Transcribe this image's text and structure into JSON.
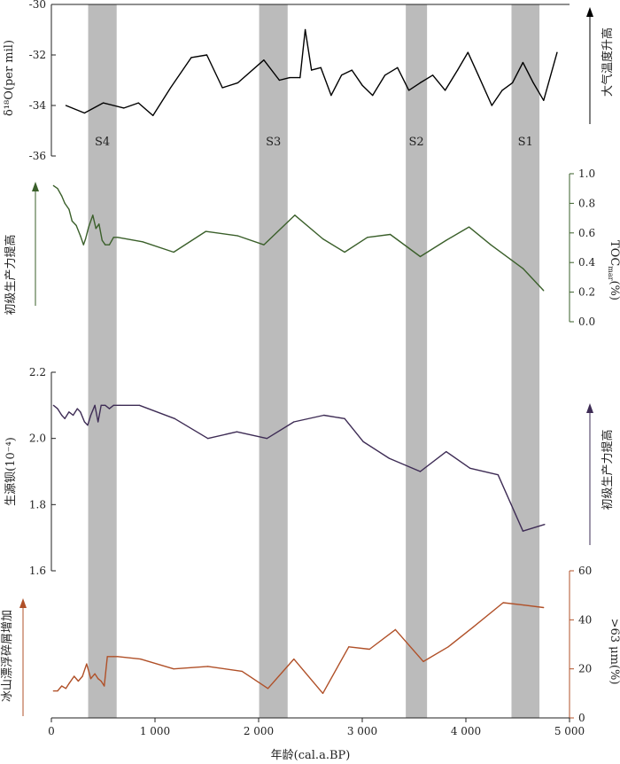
{
  "chart_data": [
    {
      "type": "line",
      "panel": "d18o",
      "ylabel": "δ¹⁸O(per mil)",
      "ylim": [
        -36,
        -30
      ],
      "yticks": [
        -30,
        -32,
        -34,
        -36
      ],
      "axis_side": "left",
      "color": "#000000",
      "arrow_label": "大气温度升高",
      "arrow_side": "right",
      "arrow_color": "#000000",
      "x": [
        140,
        320,
        500,
        700,
        840,
        980,
        1150,
        1350,
        1500,
        1650,
        1800,
        2050,
        2200,
        2300,
        2400,
        2450,
        2510,
        2600,
        2700,
        2800,
        2900,
        3000,
        3100,
        3220,
        3340,
        3450,
        3560,
        3680,
        3800,
        3920,
        4020,
        4120,
        4250,
        4350,
        4450,
        4550,
        4650,
        4750,
        4880
      ],
      "y": [
        -34.0,
        -34.3,
        -33.9,
        -34.1,
        -33.9,
        -34.4,
        -33.3,
        -32.1,
        -32.0,
        -33.3,
        -33.1,
        -32.2,
        -33.0,
        -32.9,
        -32.9,
        -31.0,
        -32.6,
        -32.5,
        -33.6,
        -32.8,
        -32.6,
        -33.2,
        -33.6,
        -32.8,
        -32.5,
        -33.4,
        -33.1,
        -32.8,
        -33.4,
        -32.6,
        -31.9,
        -32.8,
        -34.0,
        -33.4,
        -33.1,
        -32.3,
        -33.1,
        -33.8,
        -31.9
      ]
    },
    {
      "type": "line",
      "panel": "toc",
      "ylabel": "TOC",
      "ylabel_sub": "mar",
      "ylabel_unit": "(%)",
      "ylim": [
        0.0,
        1.0
      ],
      "yticks": [
        0.0,
        0.2,
        0.4,
        0.6,
        0.8,
        1.0
      ],
      "axis_side": "right",
      "color": "#3a5f2a",
      "arrow_label": "初级生产力提高",
      "arrow_side": "left",
      "arrow_color": "#3a5f2a",
      "x": [
        20,
        60,
        100,
        130,
        170,
        200,
        240,
        280,
        310,
        330,
        360,
        400,
        430,
        460,
        490,
        520,
        560,
        600,
        640,
        880,
        1180,
        1490,
        1800,
        2050,
        2350,
        2620,
        2830,
        3050,
        3270,
        3560,
        3810,
        4030,
        4240,
        4550,
        4750
      ],
      "y": [
        0.92,
        0.9,
        0.85,
        0.8,
        0.76,
        0.68,
        0.65,
        0.58,
        0.52,
        0.56,
        0.64,
        0.72,
        0.63,
        0.66,
        0.55,
        0.52,
        0.52,
        0.57,
        0.57,
        0.54,
        0.47,
        0.61,
        0.58,
        0.52,
        0.72,
        0.56,
        0.47,
        0.57,
        0.59,
        0.44,
        0.55,
        0.64,
        0.52,
        0.36,
        0.21
      ]
    },
    {
      "type": "line",
      "panel": "bio-ba",
      "ylabel": "生源钡(10⁻⁴)",
      "ylim": [
        1.6,
        2.2
      ],
      "yticks": [
        1.6,
        1.8,
        2.0,
        2.2
      ],
      "axis_side": "left",
      "color": "#3e2c55",
      "arrow_label": "初级生产力提高",
      "arrow_side": "right",
      "arrow_color": "#3e2c55",
      "x": [
        20,
        60,
        100,
        130,
        170,
        210,
        250,
        280,
        320,
        350,
        380,
        420,
        450,
        480,
        520,
        560,
        600,
        660,
        850,
        1190,
        1510,
        1790,
        2080,
        2340,
        2630,
        2830,
        3010,
        3260,
        3560,
        3810,
        4040,
        4310,
        4550,
        4760
      ],
      "y": [
        2.1,
        2.09,
        2.07,
        2.06,
        2.08,
        2.07,
        2.09,
        2.08,
        2.05,
        2.04,
        2.07,
        2.1,
        2.05,
        2.1,
        2.1,
        2.09,
        2.1,
        2.1,
        2.1,
        2.06,
        2.0,
        2.02,
        2.0,
        2.05,
        2.07,
        2.06,
        1.99,
        1.94,
        1.9,
        1.96,
        1.91,
        1.89,
        1.72,
        1.74
      ]
    },
    {
      "type": "line",
      "panel": "coarse",
      "ylabel": ">63 μm(%)",
      "ylim": [
        0,
        60
      ],
      "yticks": [
        0,
        20,
        40,
        60
      ],
      "axis_side": "right",
      "color": "#b05028",
      "arrow_label": "冰山漂浮碎屑增加",
      "arrow_side": "left",
      "arrow_color": "#b05028",
      "x": [
        20,
        60,
        100,
        140,
        170,
        220,
        260,
        300,
        340,
        380,
        420,
        450,
        480,
        510,
        540,
        600,
        640,
        860,
        1180,
        1510,
        1840,
        2090,
        2340,
        2620,
        2870,
        3070,
        3320,
        3590,
        3830,
        4070,
        4360,
        4560,
        4750
      ],
      "y": [
        11,
        11,
        13,
        12,
        14,
        17,
        15,
        17,
        22,
        16,
        18,
        16,
        15,
        13,
        25,
        25,
        25,
        24,
        20,
        21,
        19,
        12,
        24,
        10,
        29,
        28,
        36,
        23,
        29,
        37,
        47,
        46,
        45
      ]
    }
  ],
  "x_axis": {
    "label": "年龄(cal.a.BP)",
    "range": [
      0,
      5000
    ],
    "tick_labels": [
      "0",
      "1 000",
      "2 000",
      "3 000",
      "4 000",
      "5 000"
    ]
  },
  "shaded_bands": [
    {
      "label": "S4",
      "from": 355,
      "to": 630
    },
    {
      "label": "S3",
      "from": 2005,
      "to": 2280
    },
    {
      "label": "S2",
      "from": 3420,
      "to": 3625
    },
    {
      "label": "S1",
      "from": 4440,
      "to": 4710
    }
  ],
  "colors": {
    "band": "#bbbbbb",
    "axis": "#222222"
  }
}
